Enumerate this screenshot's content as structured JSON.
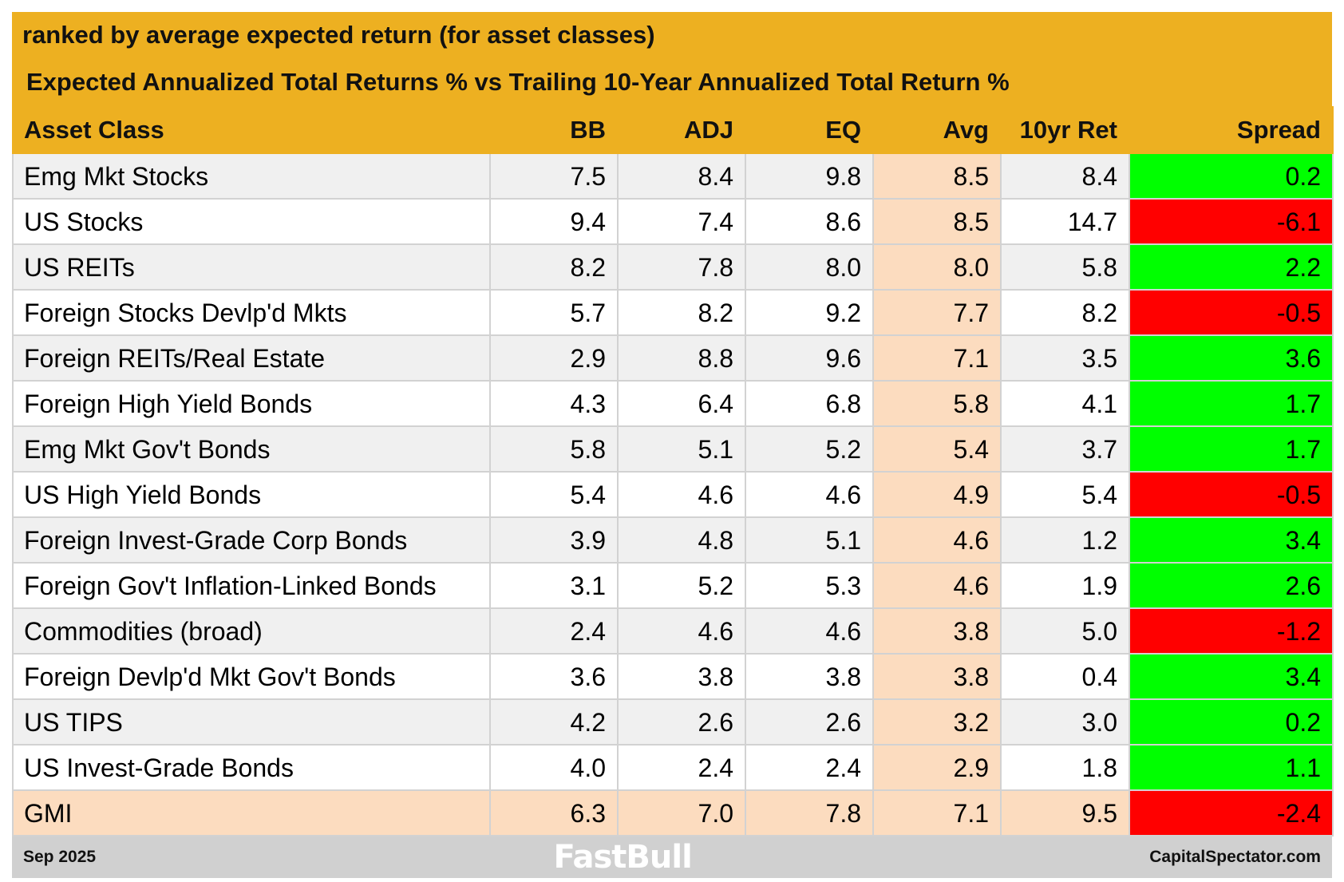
{
  "title_line1": "ranked by average expected return (for asset classes)",
  "title_line2": "Expected Annualized Total Returns % vs Trailing 10-Year Annualized Total Return %",
  "columns": [
    "Asset Class",
    "BB",
    "ADJ",
    "EQ",
    "Avg",
    "10yr Ret",
    "Spread"
  ],
  "rows": [
    {
      "name": "Emg Mkt Stocks",
      "bb": "7.5",
      "adj": "8.4",
      "eq": "9.8",
      "avg": "8.5",
      "ret10": "8.4",
      "spread": "0.2"
    },
    {
      "name": "US Stocks",
      "bb": "9.4",
      "adj": "7.4",
      "eq": "8.6",
      "avg": "8.5",
      "ret10": "14.7",
      "spread": "-6.1"
    },
    {
      "name": "US REITs",
      "bb": "8.2",
      "adj": "7.8",
      "eq": "8.0",
      "avg": "8.0",
      "ret10": "5.8",
      "spread": "2.2"
    },
    {
      "name": "Foreign Stocks Devlp'd Mkts",
      "bb": "5.7",
      "adj": "8.2",
      "eq": "9.2",
      "avg": "7.7",
      "ret10": "8.2",
      "spread": "-0.5"
    },
    {
      "name": "Foreign REITs/Real Estate",
      "bb": "2.9",
      "adj": "8.8",
      "eq": "9.6",
      "avg": "7.1",
      "ret10": "3.5",
      "spread": "3.6"
    },
    {
      "name": "Foreign High Yield Bonds",
      "bb": "4.3",
      "adj": "6.4",
      "eq": "6.8",
      "avg": "5.8",
      "ret10": "4.1",
      "spread": "1.7"
    },
    {
      "name": "Emg Mkt Gov't Bonds",
      "bb": "5.8",
      "adj": "5.1",
      "eq": "5.2",
      "avg": "5.4",
      "ret10": "3.7",
      "spread": "1.7"
    },
    {
      "name": "US High Yield Bonds",
      "bb": "5.4",
      "adj": "4.6",
      "eq": "4.6",
      "avg": "4.9",
      "ret10": "5.4",
      "spread": "-0.5"
    },
    {
      "name": "Foreign Invest-Grade Corp Bonds",
      "bb": "3.9",
      "adj": "4.8",
      "eq": "5.1",
      "avg": "4.6",
      "ret10": "1.2",
      "spread": "3.4"
    },
    {
      "name": "Foreign Gov't Inflation-Linked Bonds",
      "bb": "3.1",
      "adj": "5.2",
      "eq": "5.3",
      "avg": "4.6",
      "ret10": "1.9",
      "spread": "2.6"
    },
    {
      "name": "Commodities (broad)",
      "bb": "2.4",
      "adj": "4.6",
      "eq": "4.6",
      "avg": "3.8",
      "ret10": "5.0",
      "spread": "-1.2"
    },
    {
      "name": "Foreign Devlp'd Mkt Gov't Bonds",
      "bb": "3.6",
      "adj": "3.8",
      "eq": "3.8",
      "avg": "3.8",
      "ret10": "0.4",
      "spread": "3.4"
    },
    {
      "name": "US TIPS",
      "bb": "4.2",
      "adj": "2.6",
      "eq": "2.6",
      "avg": "3.2",
      "ret10": "3.0",
      "spread": "0.2"
    },
    {
      "name": "US Invest-Grade Bonds",
      "bb": "4.0",
      "adj": "2.4",
      "eq": "2.4",
      "avg": "2.9",
      "ret10": "1.8",
      "spread": "1.1"
    },
    {
      "name": "GMI",
      "bb": "6.3",
      "adj": "7.0",
      "eq": "7.8",
      "avg": "7.1",
      "ret10": "9.5",
      "spread": "-2.4"
    }
  ],
  "footer": {
    "date": "Sep 2025",
    "source": "CapitalSpectator.com"
  },
  "watermark": "FastBull",
  "colors": {
    "header": "#edb021",
    "avg": "#fcdcbf",
    "positive": "#00ff00",
    "negative": "#ff0000",
    "footer": "#d0d0d0"
  }
}
